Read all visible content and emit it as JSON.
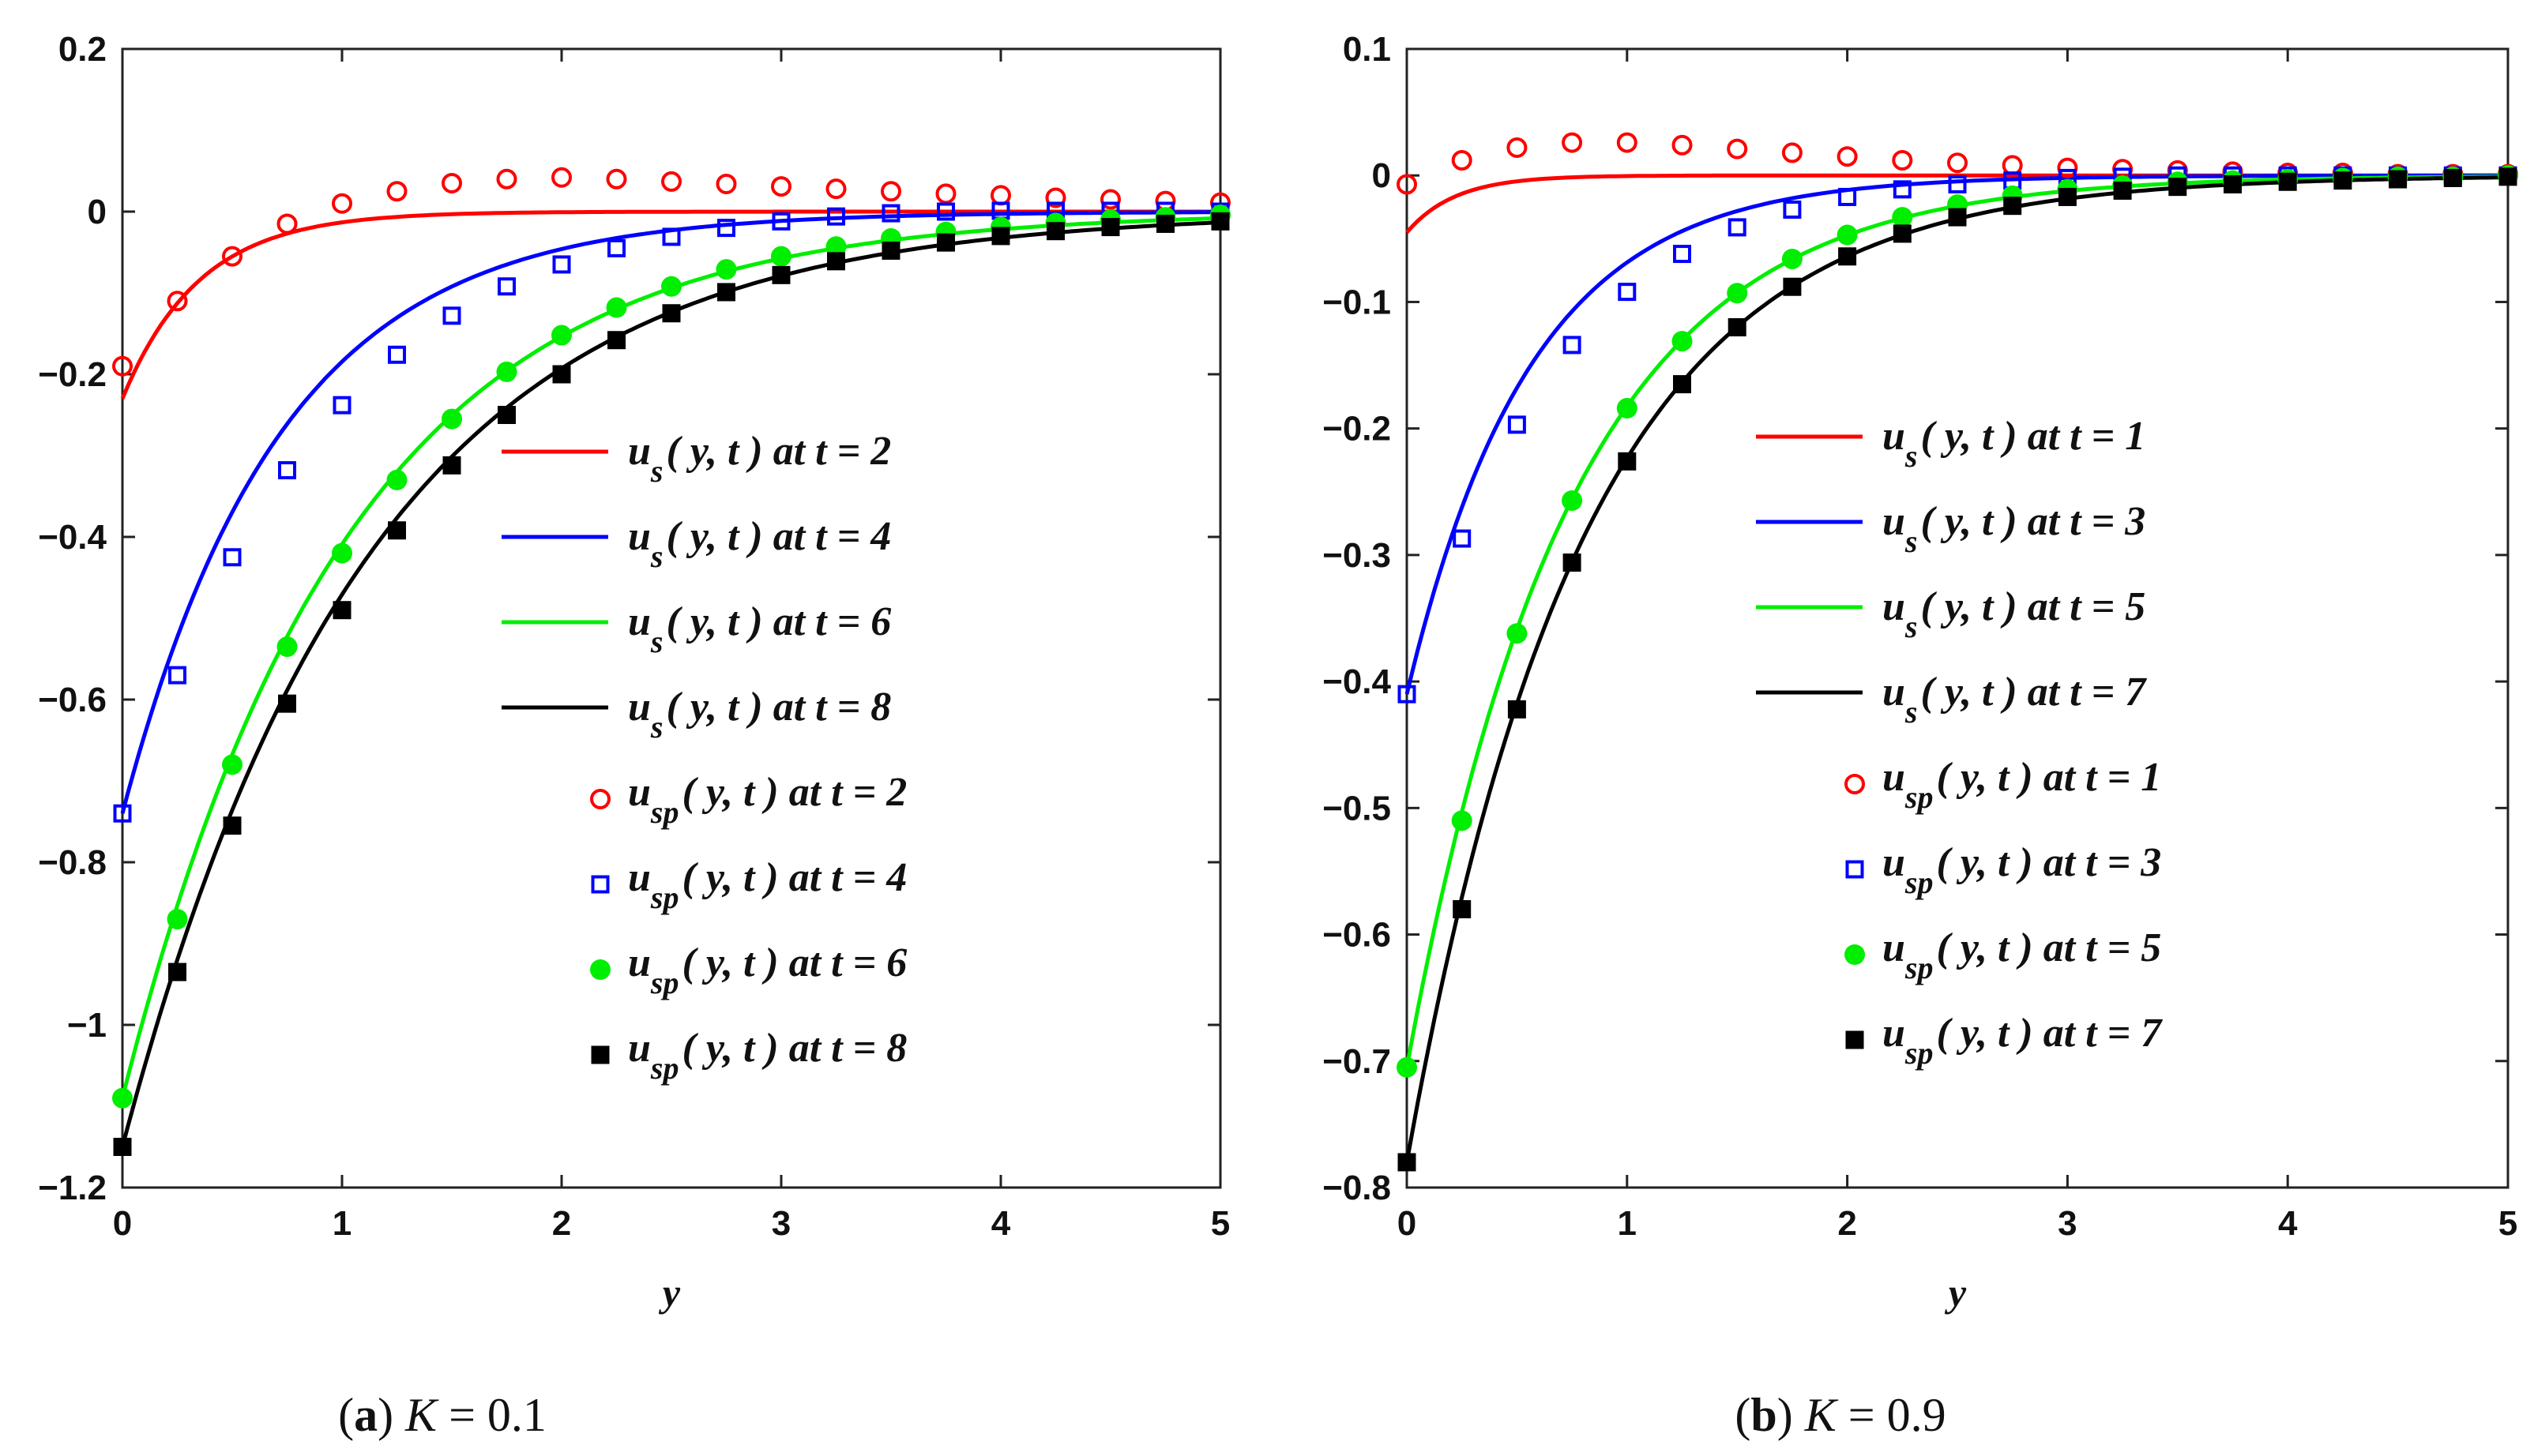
{
  "figure": {
    "captions": [
      {
        "letter": "a",
        "param": "K",
        "eq": " = ",
        "value": "0.1"
      },
      {
        "letter": "b",
        "param": "K",
        "eq": " = ",
        "value": "0.9"
      }
    ]
  },
  "chart_data": [
    {
      "type": "line",
      "xlabel": "y",
      "ylabel": "",
      "xlim": [
        0,
        5
      ],
      "ylim": [
        -1.2,
        0.2
      ],
      "xticks": [
        0,
        1,
        2,
        3,
        4,
        5
      ],
      "xtick_labels": [
        "0",
        "1",
        "2",
        "3",
        "4",
        "5"
      ],
      "yticks": [
        0.2,
        0,
        -0.2,
        -0.4,
        -0.6,
        -0.8,
        -1,
        -1.2
      ],
      "ytick_labels": [
        "0.2",
        "0",
        "−0.2",
        "−0.4",
        "−0.6",
        "−0.8",
        "−1",
        "−1.2"
      ],
      "grid": false,
      "legend_position": "center-right",
      "marker_x": [
        0,
        0.25,
        0.5,
        0.75,
        1,
        1.25,
        1.5,
        1.75,
        2,
        2.25,
        2.5,
        2.75,
        3,
        3.25,
        3.5,
        3.75,
        4,
        4.25,
        4.5,
        4.75,
        5
      ],
      "series": [
        {
          "name": "us(y,t) at t=2",
          "kind": "line",
          "color": "#ff0000",
          "y0": -0.23,
          "tau": 0.35,
          "sub": "s",
          "t": "2"
        },
        {
          "name": "us(y,t) at t=4",
          "kind": "line",
          "color": "#0000ff",
          "y0": -0.74,
          "tau": 0.72,
          "sub": "s",
          "t": "4"
        },
        {
          "name": "us(y,t) at t=6",
          "kind": "line",
          "color": "#00ee00",
          "y0": -1.09,
          "tau": 1.02,
          "sub": "s",
          "t": "6"
        },
        {
          "name": "us(y,t) at t=8",
          "kind": "line",
          "color": "#000000",
          "y0": -1.15,
          "tau": 1.12,
          "sub": "s",
          "t": "8"
        },
        {
          "name": "usp(y,t) at t=2",
          "kind": "marker",
          "marker": "circle-open",
          "color": "#ff0000",
          "sub": "sp",
          "t": "2",
          "values": [
            -0.19,
            -0.11,
            -0.055,
            -0.015,
            0.01,
            0.025,
            0.035,
            0.04,
            0.042,
            0.04,
            0.037,
            0.034,
            0.031,
            0.028,
            0.025,
            0.022,
            0.02,
            0.017,
            0.015,
            0.013,
            0.011
          ]
        },
        {
          "name": "usp(y,t) at t=4",
          "kind": "marker",
          "marker": "square-open",
          "color": "#0000ff",
          "sub": "sp",
          "t": "4",
          "values": [
            -0.74,
            -0.57,
            -0.425,
            -0.318,
            -0.238,
            -0.176,
            -0.128,
            -0.092,
            -0.065,
            -0.045,
            -0.031,
            -0.02,
            -0.012,
            -0.006,
            -0.002,
            0.0,
            0.001,
            0.001,
            0.001,
            0.001,
            0.0
          ]
        },
        {
          "name": "usp(y,t) at t=6",
          "kind": "marker",
          "marker": "circle-filled",
          "color": "#00ee00",
          "sub": "sp",
          "t": "6",
          "values": [
            -1.09,
            -0.87,
            -0.68,
            -0.535,
            -0.42,
            -0.33,
            -0.255,
            -0.197,
            -0.152,
            -0.118,
            -0.092,
            -0.071,
            -0.055,
            -0.043,
            -0.033,
            -0.025,
            -0.019,
            -0.014,
            -0.01,
            -0.007,
            -0.004
          ]
        },
        {
          "name": "usp(y,t) at t=8",
          "kind": "marker",
          "marker": "square-filled",
          "color": "#000000",
          "sub": "sp",
          "t": "8",
          "values": [
            -1.15,
            -0.935,
            -0.755,
            -0.605,
            -0.49,
            -0.392,
            -0.312,
            -0.25,
            -0.2,
            -0.158,
            -0.125,
            -0.099,
            -0.078,
            -0.061,
            -0.048,
            -0.038,
            -0.03,
            -0.024,
            -0.019,
            -0.015,
            -0.012
          ]
        }
      ]
    },
    {
      "type": "line",
      "xlabel": "y",
      "ylabel": "",
      "xlim": [
        0,
        5
      ],
      "ylim": [
        -0.8,
        0.1
      ],
      "xticks": [
        0,
        1,
        2,
        3,
        4,
        5
      ],
      "xtick_labels": [
        "0",
        "1",
        "2",
        "3",
        "4",
        "5"
      ],
      "yticks": [
        0.1,
        0,
        -0.1,
        -0.2,
        -0.3,
        -0.4,
        -0.5,
        -0.6,
        -0.7,
        -0.8
      ],
      "ytick_labels": [
        "0.1",
        "0",
        "−0.1",
        "−0.2",
        "−0.3",
        "−0.4",
        "−0.5",
        "−0.6",
        "−0.7",
        "−0.8"
      ],
      "grid": false,
      "legend_position": "center-right",
      "marker_x": [
        0,
        0.25,
        0.5,
        0.75,
        1,
        1.25,
        1.5,
        1.75,
        2,
        2.25,
        2.5,
        2.75,
        3,
        3.25,
        3.5,
        3.75,
        4,
        4.25,
        4.5,
        4.75,
        5
      ],
      "series": [
        {
          "name": "us(y,t) at t=1",
          "kind": "line",
          "color": "#ff0000",
          "y0": -0.045,
          "tau": 0.22,
          "sub": "s",
          "t": "1"
        },
        {
          "name": "us(y,t) at t=3",
          "kind": "line",
          "color": "#0000ff",
          "y0": -0.41,
          "tau": 0.56,
          "sub": "s",
          "t": "3"
        },
        {
          "name": "us(y,t) at t=5",
          "kind": "line",
          "color": "#00ee00",
          "y0": -0.705,
          "tau": 0.74,
          "sub": "s",
          "t": "5"
        },
        {
          "name": "us(y,t) at t=7",
          "kind": "line",
          "color": "#000000",
          "y0": -0.78,
          "tau": 0.8,
          "sub": "s",
          "t": "7"
        },
        {
          "name": "usp(y,t) at t=1",
          "kind": "marker",
          "marker": "circle-open",
          "color": "#ff0000",
          "sub": "sp",
          "t": "1",
          "values": [
            -0.007,
            0.012,
            0.022,
            0.026,
            0.026,
            0.024,
            0.021,
            0.018,
            0.015,
            0.012,
            0.01,
            0.008,
            0.006,
            0.005,
            0.004,
            0.003,
            0.002,
            0.002,
            0.001,
            0.001,
            0.001
          ]
        },
        {
          "name": "usp(y,t) at t=3",
          "kind": "marker",
          "marker": "square-open",
          "color": "#0000ff",
          "sub": "sp",
          "t": "3",
          "values": [
            -0.41,
            -0.287,
            -0.197,
            -0.134,
            -0.092,
            -0.062,
            -0.041,
            -0.027,
            -0.017,
            -0.011,
            -0.007,
            -0.004,
            -0.002,
            -0.001,
            0.0,
            0.0,
            0.0,
            0.0,
            0.0,
            0.0,
            0.0
          ]
        },
        {
          "name": "usp(y,t) at t=5",
          "kind": "marker",
          "marker": "circle-filled",
          "color": "#00ee00",
          "sub": "sp",
          "t": "5",
          "values": [
            -0.705,
            -0.51,
            -0.362,
            -0.257,
            -0.184,
            -0.131,
            -0.093,
            -0.066,
            -0.047,
            -0.033,
            -0.023,
            -0.016,
            -0.011,
            -0.008,
            -0.005,
            -0.004,
            -0.003,
            -0.002,
            -0.001,
            -0.001,
            0.0
          ]
        },
        {
          "name": "usp(y,t) at t=7",
          "kind": "marker",
          "marker": "square-filled",
          "color": "#000000",
          "sub": "sp",
          "t": "7",
          "values": [
            -0.78,
            -0.58,
            -0.422,
            -0.306,
            -0.226,
            -0.165,
            -0.12,
            -0.088,
            -0.064,
            -0.046,
            -0.033,
            -0.024,
            -0.017,
            -0.012,
            -0.009,
            -0.007,
            -0.005,
            -0.004,
            -0.003,
            -0.002,
            -0.001
          ]
        }
      ]
    }
  ]
}
